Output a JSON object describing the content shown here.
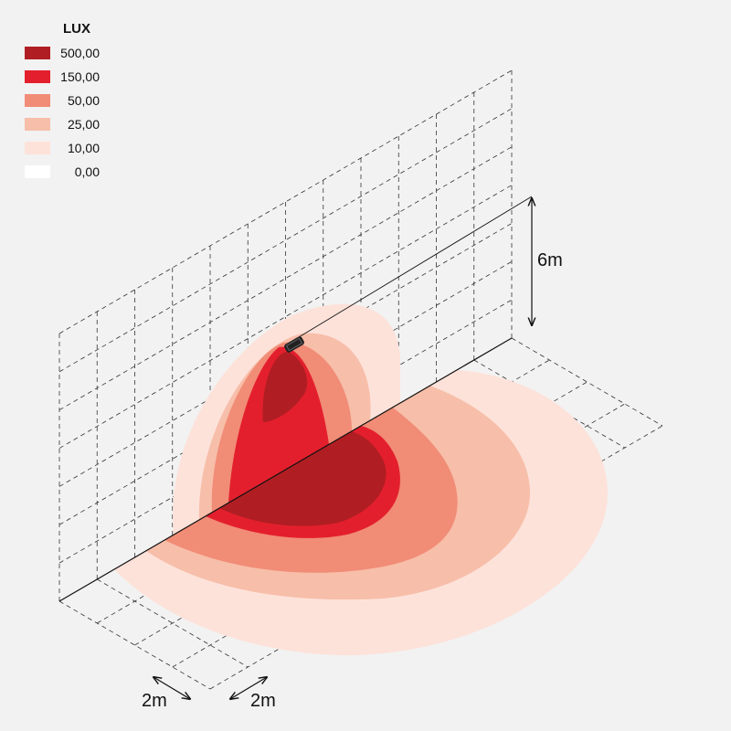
{
  "legend": {
    "title": "LUX",
    "items": [
      {
        "label": "500,00",
        "color": "#b01e23"
      },
      {
        "label": "150,00",
        "color": "#e41f2d"
      },
      {
        "label": "50,00",
        "color": "#f18c76"
      },
      {
        "label": "25,00",
        "color": "#f7bea9"
      },
      {
        "label": "10,00",
        "color": "#fde2da"
      },
      {
        "label": "0,00",
        "color": "#ffffff"
      }
    ]
  },
  "dimensions": {
    "height": "6m",
    "grid_x": "2m",
    "grid_y": "2m"
  }
}
